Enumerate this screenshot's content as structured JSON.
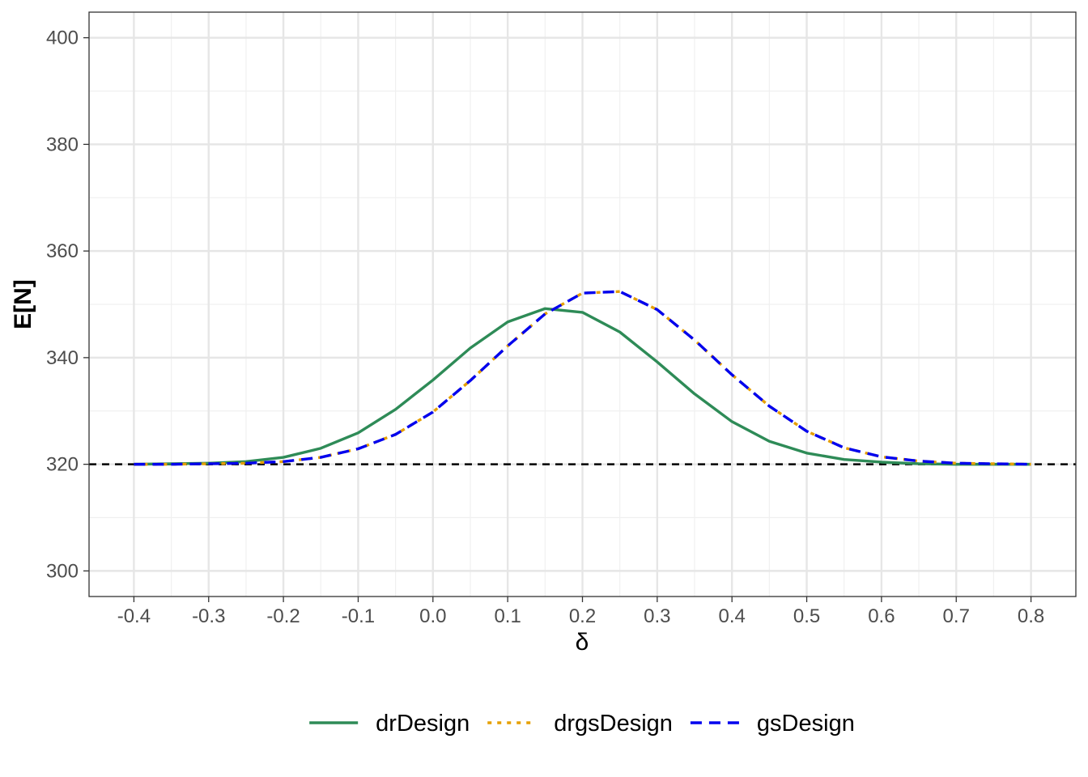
{
  "chart_data": {
    "type": "line",
    "xlabel": "δ",
    "ylabel": "E[N]",
    "xlim": [
      -0.46,
      0.86
    ],
    "ylim": [
      295.2,
      404.8
    ],
    "x_ticks": [
      "-0.4",
      "-0.3",
      "-0.2",
      "-0.1",
      "0.0",
      "0.1",
      "0.2",
      "0.3",
      "0.4",
      "0.5",
      "0.6",
      "0.7",
      "0.8"
    ],
    "y_ticks": [
      "300",
      "320",
      "340",
      "360",
      "380",
      "400"
    ],
    "grid": true,
    "legend_position": "bottom",
    "reference_line": {
      "y": 320,
      "style": "dashed",
      "color": "#000000"
    },
    "x": [
      -0.4,
      -0.35,
      -0.3,
      -0.25,
      -0.2,
      -0.15,
      -0.1,
      -0.05,
      0.0,
      0.05,
      0.1,
      0.15,
      0.2,
      0.25,
      0.3,
      0.35,
      0.4,
      0.45,
      0.5,
      0.55,
      0.6,
      0.65,
      0.7,
      0.75,
      0.8
    ],
    "series": [
      {
        "name": "drDesign",
        "color": "#2E8B57",
        "dash": "solid",
        "values": [
          320.0,
          320.1,
          320.2,
          320.5,
          321.3,
          323.0,
          325.9,
          330.3,
          335.8,
          341.8,
          346.7,
          349.2,
          348.5,
          344.8,
          339.2,
          333.2,
          328.0,
          324.3,
          322.1,
          320.9,
          320.4,
          320.1,
          320.0,
          320.0,
          320.0
        ]
      },
      {
        "name": "drgsDesign",
        "color": "#E69F00",
        "dash": "dotted",
        "values": [
          320.0,
          320.0,
          320.1,
          320.2,
          320.5,
          321.3,
          322.9,
          325.6,
          329.8,
          335.7,
          342.2,
          348.2,
          352.1,
          352.4,
          349.0,
          343.3,
          336.8,
          330.9,
          326.2,
          323.1,
          321.4,
          320.6,
          320.2,
          320.1,
          320.0
        ]
      },
      {
        "name": "gsDesign",
        "color": "#0000EE",
        "dash": "dashed",
        "values": [
          320.0,
          320.0,
          320.1,
          320.2,
          320.5,
          321.3,
          322.9,
          325.6,
          329.8,
          335.7,
          342.2,
          348.2,
          352.1,
          352.4,
          349.0,
          343.3,
          336.8,
          330.9,
          326.2,
          323.1,
          321.4,
          320.6,
          320.2,
          320.1,
          320.0
        ]
      }
    ]
  }
}
